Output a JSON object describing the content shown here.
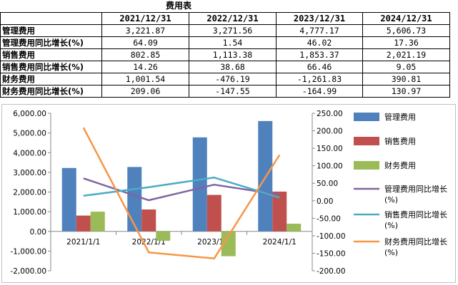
{
  "table": {
    "title": "费用表",
    "header_blank": "",
    "columns": [
      "2021/12/31",
      "2022/12/31",
      "2023/12/31",
      "2024/12/31"
    ],
    "rows": [
      {
        "label": "管理费用",
        "values": [
          "3,221.87",
          "3,271.56",
          "4,777.17",
          "5,606.73"
        ]
      },
      {
        "label": "管理费用同比增长(%)",
        "values": [
          "64.09",
          "1.54",
          "46.02",
          "17.36"
        ]
      },
      {
        "label": "销售费用",
        "values": [
          "802.85",
          "1,113.38",
          "1,853.37",
          "2,021.19"
        ]
      },
      {
        "label": "销售费用同比增长(%)",
        "values": [
          "14.26",
          "38.68",
          "66.46",
          "9.05"
        ]
      },
      {
        "label": "财务费用",
        "values": [
          "1,001.54",
          "-476.19",
          "-1,261.83",
          "390.81"
        ]
      },
      {
        "label": "财务费用同比增长(%)",
        "values": [
          "209.06",
          "-147.55",
          "-164.99",
          "130.97"
        ]
      }
    ]
  },
  "chart_data": {
    "type": "bar+line",
    "categories": [
      "2021/1/1",
      "2022/1/1",
      "2023/1/1",
      "2024/1/1"
    ],
    "left_axis": {
      "min": -2000,
      "max": 6000,
      "step": 1000,
      "tick_labels": [
        "-2,000.00",
        "-1,000.00",
        "0.00",
        "1,000.00",
        "2,000.00",
        "3,000.00",
        "4,000.00",
        "5,000.00",
        "6,000.00"
      ]
    },
    "right_axis": {
      "min": -200,
      "max": 250,
      "step": 50,
      "tick_labels": [
        "-200.00",
        "-150.00",
        "-100.00",
        "-50.00",
        "0.00",
        "50.00",
        "100.00",
        "150.00",
        "200.00",
        "250.00"
      ]
    },
    "bar_series": [
      {
        "name": "管理费用",
        "color": "#4f81bd",
        "values": [
          3221.87,
          3271.56,
          4777.17,
          5606.73
        ]
      },
      {
        "name": "销售费用",
        "color": "#c0504d",
        "values": [
          802.85,
          1113.38,
          1853.37,
          2021.19
        ]
      },
      {
        "name": "财务费用",
        "color": "#9bbb59",
        "values": [
          1001.54,
          -476.19,
          -1261.83,
          390.81
        ]
      }
    ],
    "line_series": [
      {
        "name": "管理费用同比增长(%)",
        "color": "#8064a2",
        "values": [
          64.09,
          1.54,
          46.02,
          17.36
        ]
      },
      {
        "name": "销售费用同比增长(%)",
        "color": "#4bacc6",
        "values": [
          14.26,
          38.68,
          66.46,
          9.05
        ]
      },
      {
        "name": "财务费用同比增长(%)",
        "color": "#f79646",
        "values": [
          209.06,
          -147.55,
          -164.99,
          130.97
        ]
      }
    ],
    "legend_position": "right"
  }
}
